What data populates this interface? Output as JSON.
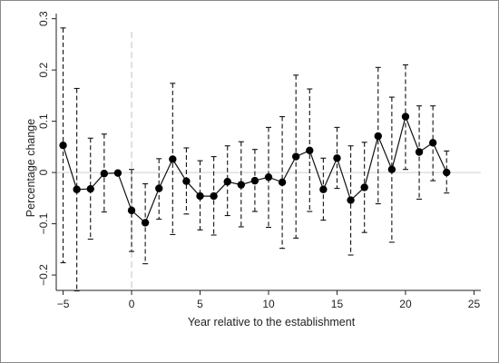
{
  "chart_data": {
    "type": "line",
    "title": "",
    "xlabel": "Year relative to the establishment",
    "ylabel": "Percentage change",
    "xlim": [
      -5.5,
      25.5
    ],
    "ylim": [
      -0.23,
      0.31
    ],
    "x_ticks": [
      -5,
      0,
      5,
      10,
      15,
      20,
      25
    ],
    "x_tick_labels": [
      "−5",
      "0",
      "5",
      "10",
      "15",
      "20",
      "25"
    ],
    "y_ticks": [
      -0.2,
      -0.1,
      0,
      0.1,
      0.2,
      0.3
    ],
    "y_tick_labels": [
      "−0.2",
      "−0.1",
      "0",
      "0.1",
      "0.2",
      "0.3"
    ],
    "reference_lines": {
      "x": 0,
      "y": 0
    },
    "grid": false,
    "legend": "none",
    "series": [
      {
        "x": [
          -5,
          -4,
          -3,
          -2,
          -1,
          0,
          1,
          2,
          3,
          4,
          5,
          6,
          7,
          8,
          9,
          10,
          11,
          12,
          13,
          14,
          15,
          16,
          17,
          18,
          19,
          20,
          21,
          22,
          23
        ],
        "values": [
          0.053,
          -0.033,
          -0.032,
          -0.002,
          -0.001,
          -0.074,
          -0.098,
          -0.031,
          0.026,
          -0.017,
          -0.046,
          -0.046,
          -0.018,
          -0.024,
          -0.016,
          -0.009,
          -0.019,
          0.031,
          0.043,
          -0.033,
          0.028,
          -0.054,
          -0.029,
          0.071,
          0.006,
          0.109,
          0.04,
          0.058,
          0.0
        ],
        "ci_lower": [
          -0.176,
          -0.231,
          -0.13,
          -0.077,
          null,
          -0.154,
          -0.178,
          -0.091,
          -0.121,
          -0.081,
          -0.112,
          -0.122,
          -0.084,
          -0.106,
          -0.076,
          -0.107,
          -0.148,
          -0.128,
          -0.076,
          -0.093,
          -0.031,
          -0.161,
          -0.117,
          -0.061,
          -0.136,
          0.006,
          -0.052,
          -0.016,
          -0.04
        ],
        "ci_upper": [
          0.282,
          0.164,
          0.067,
          0.075,
          null,
          0.006,
          -0.022,
          0.027,
          0.174,
          0.048,
          0.023,
          0.031,
          0.052,
          0.06,
          0.045,
          0.088,
          0.109,
          0.19,
          0.163,
          0.028,
          0.088,
          0.052,
          0.059,
          0.205,
          0.147,
          0.21,
          0.13,
          0.13,
          0.042
        ]
      }
    ]
  }
}
